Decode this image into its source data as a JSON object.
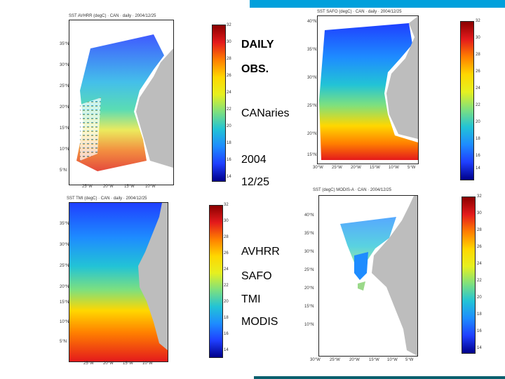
{
  "colors": {
    "top_bar": "#00a0dc",
    "bottom_bar": "#0a5f6e",
    "land": "#bdbdbd"
  },
  "captions": {
    "daily": "DAILY",
    "obs": "OBS.",
    "region": "CANaries",
    "year": "2004",
    "date": "12/25",
    "avhrr": "AVHRR",
    "safo": "SAFO",
    "tmi": "TMI",
    "modis": "MODIS"
  },
  "panels": {
    "avhrr": {
      "title": "SST AVHRR (degC) · CAN · daily · 2004/12/25",
      "yticks": [
        "35°N",
        "30°N",
        "25°N",
        "20°N",
        "15°N",
        "10°N",
        "5°N"
      ],
      "xticks": [
        "25°W",
        "20°W",
        "15°W",
        "10°W"
      ],
      "cbticks": [
        "32",
        "30",
        "28",
        "26",
        "24",
        "22",
        "20",
        "18",
        "16",
        "14"
      ]
    },
    "safo": {
      "title": "SST SAFO (degC) · CAN · daily · 2004/12/25",
      "yticks": [
        "40°N",
        "35°N",
        "30°N",
        "25°N",
        "20°N",
        "15°N"
      ],
      "xticks": [
        "30°W",
        "25°W",
        "20°W",
        "15°W",
        "10°W",
        "5°W"
      ],
      "cbticks": [
        "32",
        "30",
        "28",
        "26",
        "24",
        "22",
        "20",
        "18",
        "16",
        "14"
      ]
    },
    "tmi": {
      "title": "SST TMI (degC) · CAN · daily · 2004/12/25",
      "yticks": [
        "35°N",
        "30°N",
        "25°N",
        "20°N",
        "15°N",
        "10°N",
        "5°N"
      ],
      "xticks": [
        "25°W",
        "20°W",
        "15°W",
        "10°W"
      ],
      "cbticks": [
        "32",
        "30",
        "28",
        "26",
        "24",
        "22",
        "20",
        "18",
        "16",
        "14"
      ]
    },
    "modis": {
      "title": "SST (degC) MODIS-A · CAN · 2004/12/25",
      "yticks": [
        "40°N",
        "35°N",
        "30°N",
        "25°N",
        "20°N",
        "15°N",
        "10°N"
      ],
      "xticks": [
        "30°W",
        "25°W",
        "20°W",
        "15°W",
        "10°W",
        "5°W"
      ],
      "cbticks": [
        "32",
        "30",
        "28",
        "26",
        "24",
        "22",
        "20",
        "18",
        "16",
        "14"
      ]
    }
  }
}
